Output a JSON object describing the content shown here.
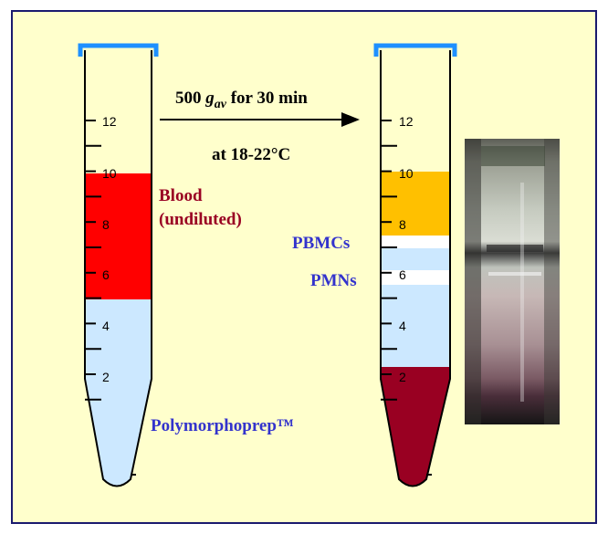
{
  "colors": {
    "panel_bg": "#FFFFCC",
    "panel_border": "#1A1A6E",
    "cap": "#1E90FF",
    "blood": "#FF0000",
    "gradient": "#CCE8FF",
    "plasma": "#FFC000",
    "pmn_band": "#FFFFFF",
    "rbc": "#990022",
    "label_red": "#990022",
    "label_blue": "#3333CC"
  },
  "icons": [
    "centrifuge-tube-icon",
    "arrow-right-icon",
    "tube-photo"
  ],
  "arrow": {
    "speed_value": "500",
    "speed_unit_g": "g",
    "speed_unit_sub": "av",
    "speed_suffix": "for 30 min",
    "temperature": "at 18-22°C"
  },
  "tube_before": {
    "scale_labels": [
      "12",
      "10",
      "8",
      "6",
      "4",
      "2"
    ],
    "blood_label_line1": "Blood",
    "blood_label_line2": "(undiluted)",
    "gradient_label": "Polymorphoprep™"
  },
  "tube_after": {
    "scale_labels": [
      "12",
      "10",
      "8",
      "6",
      "4",
      "2"
    ],
    "pbmc_label": "PBMCs",
    "pmn_label": "PMNs"
  }
}
